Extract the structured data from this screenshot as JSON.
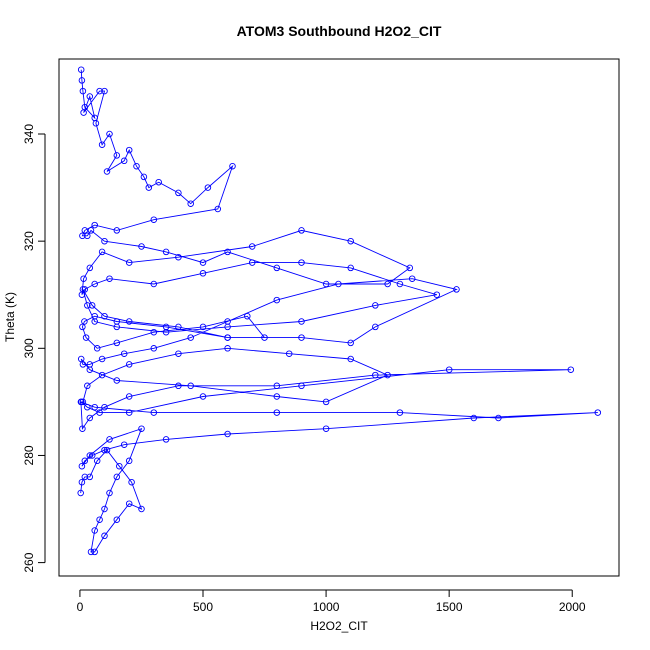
{
  "chart_data": {
    "type": "line",
    "title": "ATOM3 Southbound H2O2_CIT",
    "xlabel": "H2O2_CIT",
    "ylabel": "Theta (K)",
    "xlim": [
      -85,
      2190
    ],
    "ylim": [
      257.5,
      354
    ],
    "x_ticks": [
      0,
      500,
      1000,
      1500,
      2000
    ],
    "y_ticks": [
      260,
      280,
      300,
      320,
      340
    ],
    "x_tick_labels": [
      "0",
      "500",
      "1000",
      "1500",
      "2000"
    ],
    "y_tick_labels": [
      "260",
      "280",
      "300",
      "320",
      "340"
    ],
    "grid": false,
    "legend": "none",
    "marker": "open-circle",
    "line_color": "#0000ff",
    "series": [
      {
        "x": [
          5,
          8,
          12,
          20,
          60,
          40,
          15,
          80,
          100,
          65,
          90,
          120,
          150,
          110,
          180,
          200,
          230,
          260,
          280,
          320,
          400,
          450,
          520,
          620,
          560,
          300,
          150,
          60,
          20,
          10,
          30,
          45,
          100,
          250,
          350,
          500,
          600,
          800,
          1000,
          1250,
          1340,
          1100,
          900,
          700,
          400,
          200,
          90,
          40,
          15,
          8,
          20,
          60,
          120,
          300,
          500,
          700,
          900,
          1100,
          1300,
          1450,
          1200,
          900,
          600,
          350,
          150,
          60,
          30,
          12,
          50,
          100,
          200,
          400,
          600,
          750,
          680,
          500,
          300,
          150,
          70,
          25,
          10,
          18,
          60,
          150,
          350,
          600,
          900,
          1100,
          1200,
          1530,
          1350,
          1050,
          800,
          600,
          450,
          300,
          180,
          90,
          40,
          12,
          5,
          40,
          150,
          450,
          800,
          1000,
          1250,
          1100,
          850,
          600,
          400,
          200,
          90,
          30,
          12,
          6,
          30,
          80,
          200,
          500,
          900,
          1500,
          1994,
          1200,
          800,
          400,
          200,
          100,
          40,
          10,
          4,
          60,
          300,
          800,
          1300,
          1700,
          2104,
          1600,
          1000,
          600,
          350,
          180,
          100,
          50,
          20,
          8,
          40,
          120,
          250,
          200,
          150,
          120,
          100,
          80,
          60,
          45,
          60,
          100,
          150,
          200,
          250,
          210,
          160,
          110,
          70,
          40,
          20,
          8,
          3
        ],
        "y": [
          352,
          350,
          348,
          345,
          343,
          347,
          344,
          348,
          348,
          342,
          338,
          340,
          336,
          333,
          335,
          337,
          334,
          332,
          330,
          331,
          329,
          327,
          330,
          334,
          326,
          324,
          322,
          323,
          322,
          321,
          321,
          322,
          320,
          319,
          318,
          316,
          318,
          315,
          312,
          312,
          315,
          320,
          322,
          319,
          317,
          316,
          318,
          315,
          313,
          310,
          311,
          312,
          313,
          312,
          314,
          316,
          316,
          315,
          312,
          310,
          308,
          305,
          304,
          303,
          304,
          305,
          308,
          311,
          308,
          306,
          305,
          304,
          302,
          302,
          306,
          304,
          303,
          301,
          300,
          302,
          304,
          305,
          306,
          305,
          304,
          302,
          302,
          301,
          304,
          311,
          313,
          312,
          309,
          305,
          302,
          300,
          299,
          298,
          297,
          297,
          298,
          296,
          294,
          293,
          291,
          290,
          295,
          298,
          299,
          300,
          299,
          297,
          295,
          293,
          290,
          290,
          289,
          288,
          288,
          291,
          293,
          296,
          296,
          295,
          293,
          293,
          291,
          289,
          287,
          285,
          290,
          289,
          288,
          288,
          288,
          287,
          288,
          287,
          285,
          284,
          283,
          282,
          281,
          280,
          279,
          278,
          280,
          283,
          285,
          279,
          276,
          273,
          270,
          268,
          266,
          262,
          262,
          265,
          268,
          271,
          270,
          275,
          278,
          281,
          279,
          276,
          276,
          275,
          273
        ]
      }
    ]
  }
}
